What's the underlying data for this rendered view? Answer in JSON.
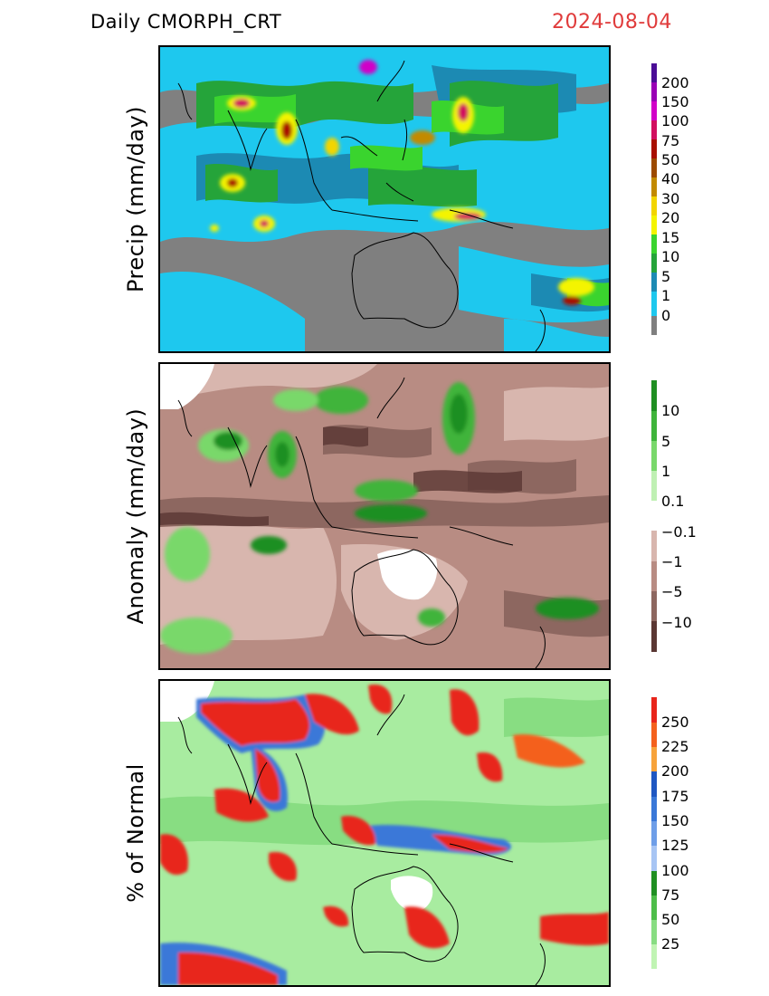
{
  "header": {
    "title": "Daily  CMORPH_CRT",
    "date": "2024-08-04",
    "date_color": "#e03b3b"
  },
  "panels": [
    {
      "id": "precip",
      "ylabel": "Precip  (mm/day)",
      "colorbar_labels": [
        "200",
        "150",
        "100",
        "75",
        "50",
        "40",
        "30",
        "20",
        "15",
        "10",
        "5",
        "1",
        "0"
      ],
      "colorbar_colors": [
        "#4b0d96",
        "#9a00b5",
        "#d100c8",
        "#d10f5f",
        "#a80f00",
        "#9c4a00",
        "#c28a00",
        "#f2d500",
        "#f4f400",
        "#3ad42e",
        "#25a43a",
        "#1c8ab3",
        "#1ec8ee",
        "#7f7f7f"
      ]
    },
    {
      "id": "anomaly",
      "ylabel": "Anomaly  (mm/day)",
      "colorbar_labels": [
        "10",
        "5",
        "1",
        "0.1",
        "−0.1",
        "−1",
        "−5",
        "−10"
      ],
      "colorbar_colors": [
        "#1f8f22",
        "#3fb43b",
        "#79d86b",
        "#bff0b3",
        "#ffffff",
        "#d8b6ae",
        "#b88c83",
        "#8d6760",
        "#5a3733"
      ]
    },
    {
      "id": "percent",
      "ylabel": "%  of  Normal",
      "colorbar_labels": [
        "250",
        "225",
        "200",
        "175",
        "150",
        "125",
        "100",
        "75",
        "50",
        "25"
      ],
      "colorbar_colors": [
        "#e8251b",
        "#f4611d",
        "#f7a33b",
        "#1f57c2",
        "#3a78d8",
        "#6e9ee8",
        "#a7c5f4",
        "#1f8f22",
        "#4dbd49",
        "#88dd82",
        "#c0f4b3"
      ]
    }
  ]
}
